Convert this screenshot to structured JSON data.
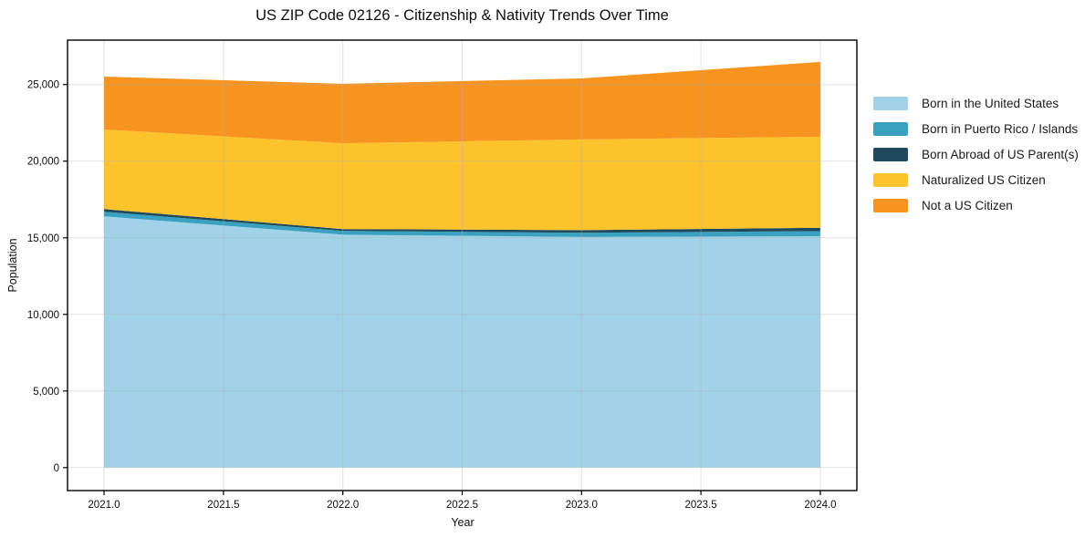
{
  "chart_data": {
    "type": "area",
    "stacked": true,
    "title": "US ZIP Code 02126 - Citizenship & Nativity Trends Over Time",
    "xlabel": "Year",
    "ylabel": "Population",
    "x": [
      2021,
      2022,
      2023,
      2024
    ],
    "series": [
      {
        "name": "Born in the United States",
        "color": "#a1d2e8",
        "values": [
          16400,
          15200,
          15050,
          15100
        ]
      },
      {
        "name": "Born in Puerto Rico / Islands",
        "color": "#3aa2c0",
        "values": [
          300,
          250,
          280,
          330
        ]
      },
      {
        "name": "Born Abroad of US Parent(s)",
        "color": "#1f4a5c",
        "values": [
          170,
          120,
          170,
          220
        ]
      },
      {
        "name": "Naturalized US Citizen",
        "color": "#fdc32d",
        "values": [
          5200,
          5600,
          5920,
          5950
        ]
      },
      {
        "name": "Not a US Citizen",
        "color": "#f7941f",
        "values": [
          3450,
          3880,
          3980,
          4880
        ]
      }
    ],
    "totals": [
      25520,
      25050,
      25400,
      26480
    ],
    "xlim": [
      2020.847,
      2024.153
    ],
    "ylim": [
      -1500,
      27900
    ],
    "x_ticks": [
      2021.0,
      2021.5,
      2022.0,
      2022.5,
      2023.0,
      2023.5,
      2024.0
    ],
    "x_tick_labels": [
      "2021.0",
      "2021.5",
      "2022.0",
      "2022.5",
      "2023.0",
      "2023.5",
      "2024.0"
    ],
    "y_ticks": [
      0,
      5000,
      10000,
      15000,
      20000,
      25000
    ],
    "y_tick_labels": [
      "0",
      "5,000",
      "10,000",
      "15,000",
      "20,000",
      "25,000"
    ],
    "grid": true,
    "legend_position": "right-outside",
    "colors": {
      "background": "#ffffff",
      "spine": "#000000",
      "gridline": "#b0b0b0",
      "tick_text": "#0d0d0d"
    }
  }
}
